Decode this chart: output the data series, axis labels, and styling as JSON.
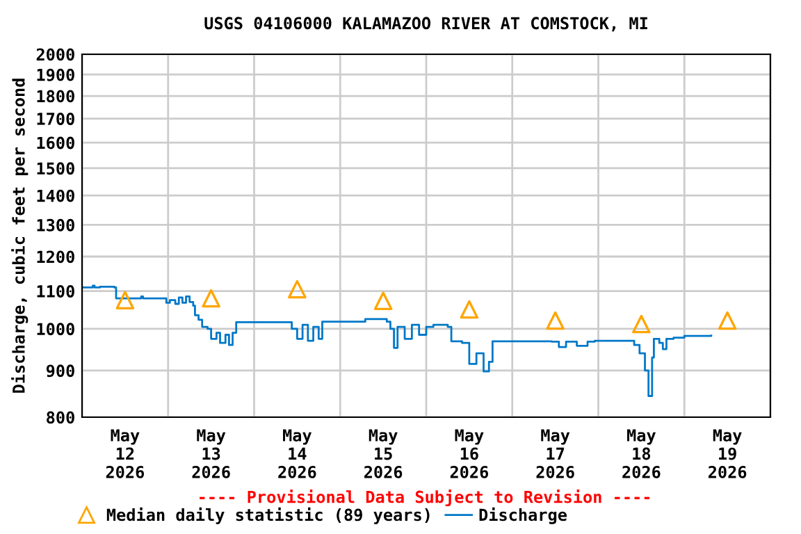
{
  "chart_data": {
    "type": "step",
    "title": "USGS 04106000 KALAMAZOO RIVER AT COMSTOCK, MI",
    "ylabel": "Discharge, cubic feet per second",
    "annotations": [
      "---- Provisional Data Subject to Revision ----"
    ],
    "log": "y",
    "grid": true,
    "legend": "bottom",
    "xlim": [
      "2026-05-12T00:00",
      "2026-05-20T00:00"
    ],
    "xticks": [
      {
        "value": "2026-05-12T00:00",
        "label": null
      },
      {
        "value": "2026-05-12T12:00",
        "label": "May\n12\n2026"
      },
      {
        "value": "2026-05-13T00:00",
        "label": null
      },
      {
        "value": "2026-05-13T12:00",
        "label": "May\n13\n2026"
      },
      {
        "value": "2026-05-14T00:00",
        "label": null
      },
      {
        "value": "2026-05-14T12:00",
        "label": "May\n14\n2026"
      },
      {
        "value": "2026-05-15T00:00",
        "label": null
      },
      {
        "value": "2026-05-15T12:00",
        "label": "May\n15\n2026"
      },
      {
        "value": "2026-05-16T00:00",
        "label": null
      },
      {
        "value": "2026-05-16T12:00",
        "label": "May\n16\n2026"
      },
      {
        "value": "2026-05-17T00:00",
        "label": null
      },
      {
        "value": "2026-05-17T12:00",
        "label": "May\n17\n2026"
      },
      {
        "value": "2026-05-18T00:00",
        "label": null
      },
      {
        "value": "2026-05-18T12:00",
        "label": "May\n18\n2026"
      },
      {
        "value": "2026-05-19T00:00",
        "label": null
      },
      {
        "value": "2026-05-19T12:00",
        "label": "May\n19\n2026"
      },
      {
        "value": "2026-05-20T00:00",
        "label": null
      }
    ],
    "ylim": [
      800,
      2000
    ],
    "yticks": [
      800,
      900,
      1000,
      1100,
      1200,
      1300,
      1400,
      1500,
      1600,
      1700,
      1800,
      1900,
      2000
    ],
    "series": [
      {
        "name": "Median daily statistic (89 years)",
        "type": "scatter",
        "marker": "triangle",
        "color": "#ffa500",
        "x": [
          "2026-05-12T12:00",
          "2026-05-13T12:00",
          "2026-05-14T12:00",
          "2026-05-15T12:00",
          "2026-05-16T12:00",
          "2026-05-17T12:00",
          "2026-05-18T12:00",
          "2026-05-19T12:00"
        ],
        "values": [
          1075,
          1080,
          1105,
          1073,
          1050,
          1021,
          1012,
          1021
        ]
      },
      {
        "name": "Discharge",
        "color": "#0078c8",
        "x": [
          "2026-05-12T00:00",
          "2026-05-12T03:00",
          "2026-05-12T03:30",
          "2026-05-12T05:00",
          "2026-05-12T09:00",
          "2026-05-12T09:30",
          "2026-05-12T16:00",
          "2026-05-12T16:30",
          "2026-05-12T17:00",
          "2026-05-12T22:30",
          "2026-05-12T23:30",
          "2026-05-13T00:30",
          "2026-05-13T02:00",
          "2026-05-13T03:00",
          "2026-05-13T04:00",
          "2026-05-13T05:00",
          "2026-05-13T06:00",
          "2026-05-13T07:00",
          "2026-05-13T07:30",
          "2026-05-13T08:30",
          "2026-05-13T09:30",
          "2026-05-13T11:00",
          "2026-05-13T12:00",
          "2026-05-13T13:30",
          "2026-05-13T14:30",
          "2026-05-13T16:00",
          "2026-05-13T17:00",
          "2026-05-13T18:00",
          "2026-05-13T19:00",
          "2026-05-14T02:00",
          "2026-05-14T09:00",
          "2026-05-14T10:30",
          "2026-05-14T12:00",
          "2026-05-14T13:30",
          "2026-05-14T15:00",
          "2026-05-14T16:30",
          "2026-05-14T18:00",
          "2026-05-14T19:00",
          "2026-05-15T06:30",
          "2026-05-15T07:00",
          "2026-05-15T12:00",
          "2026-05-15T13:00",
          "2026-05-15T14:00",
          "2026-05-15T15:00",
          "2026-05-15T16:00",
          "2026-05-15T18:00",
          "2026-05-15T20:00",
          "2026-05-15T22:00",
          "2026-05-16T00:00",
          "2026-05-16T02:00",
          "2026-05-16T06:00",
          "2026-05-16T07:00",
          "2026-05-16T10:00",
          "2026-05-16T12:00",
          "2026-05-16T14:00",
          "2026-05-16T16:00",
          "2026-05-16T17:30",
          "2026-05-16T18:30",
          "2026-05-17T11:00",
          "2026-05-17T13:00",
          "2026-05-17T15:00",
          "2026-05-17T18:00",
          "2026-05-17T21:00",
          "2026-05-17T23:00",
          "2026-05-18T08:00",
          "2026-05-18T10:00",
          "2026-05-18T11:30",
          "2026-05-18T13:00",
          "2026-05-18T14:00",
          "2026-05-18T15:00",
          "2026-05-18T15:30",
          "2026-05-18T17:00",
          "2026-05-18T18:00",
          "2026-05-18T19:00",
          "2026-05-18T21:00",
          "2026-05-19T00:00",
          "2026-05-19T07:30"
        ],
        "values": [
          1110,
          1115,
          1110,
          1112,
          1110,
          1080,
          1080,
          1085,
          1080,
          1080,
          1068,
          1075,
          1065,
          1082,
          1068,
          1085,
          1070,
          1060,
          1035,
          1023,
          1005,
          1000,
          975,
          990,
          965,
          985,
          960,
          990,
          1017,
          1017,
          1017,
          1000,
          975,
          1010,
          970,
          1005,
          975,
          1018,
          1018,
          1025,
          1025,
          1018,
          1000,
          953,
          1005,
          975,
          1010,
          985,
          1005,
          1010,
          1005,
          969,
          965,
          915,
          940,
          898,
          920,
          969,
          968,
          955,
          968,
          958,
          968,
          970,
          970,
          960,
          940,
          900,
          844,
          930,
          975,
          965,
          950,
          975,
          978,
          982,
          983
        ]
      }
    ]
  }
}
